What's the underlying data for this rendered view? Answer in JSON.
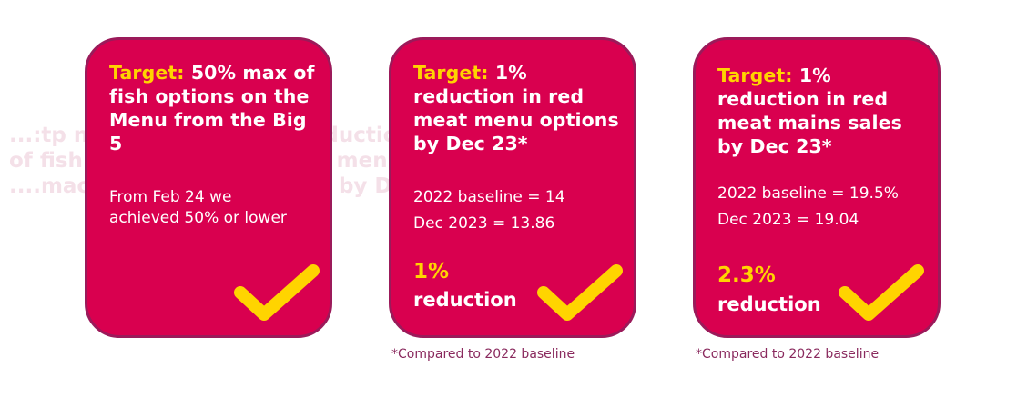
{
  "background_ghost_text": [
    "...:tp ner' 50% max · 1% reduction · 1% reduc",
    "of fish options on red meat menu red meat mains",
    "....mac eamed Dec 23 sales by Dec 23*"
  ],
  "colors": {
    "card_fill": "#d9004f",
    "card_border": "#9b1a5a",
    "accent_yellow": "#ffd400",
    "footnote": "#8a2a5e"
  },
  "cards": [
    {
      "target_label": "Target:",
      "target_text": "50% max of fish options on the Menu from the Big 5",
      "lines": [
        "From Feb 24 we",
        "achieved 50% or lower"
      ],
      "icon": "checkmark-icon"
    },
    {
      "target_label": "Target:",
      "target_text": "1% reduction in red meat menu options by Dec 23*",
      "lines": [
        "2022 baseline = 14",
        "Dec 2023 = 13.86"
      ],
      "result_value": "1%",
      "result_label": "reduction",
      "icon": "checkmark-icon",
      "footnote": "*Compared to 2022 baseline"
    },
    {
      "target_label": "Target:",
      "target_text": "1% reduction in red meat mains sales by Dec 23*",
      "lines": [
        "2022 baseline = 19.5%",
        "Dec 2023 = 19.04"
      ],
      "result_value": "2.3%",
      "result_label": "reduction",
      "icon": "checkmark-icon",
      "footnote": "*Compared to 2022 baseline"
    }
  ]
}
